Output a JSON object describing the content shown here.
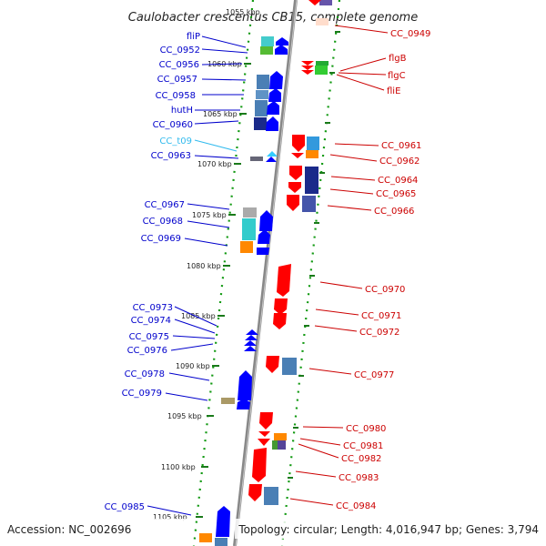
{
  "title": "Caulobacter crescentus CB15, complete genome",
  "partial_top_label": "1055 kbp",
  "footer": {
    "accession": "Accession: NC_002696",
    "summary": "Topology: circular; Length: 4,016,947 bp; Genes: 3,794"
  },
  "colors": {
    "forward_strand": "#0000ff",
    "reverse_strand": "#ff0000",
    "trna": "#33ccff",
    "backbone": "#888888",
    "tick": "#008800"
  },
  "kbp_ticks": [
    "1060 kbp",
    "1065 kbp",
    "1070 kbp",
    "1075 kbp",
    "1080 kbp",
    "1085 kbp",
    "1090 kbp",
    "1095 kbp",
    "1100 kbp",
    "1105 kbp"
  ],
  "left_labels": [
    {
      "text": "fliP",
      "color": "#0000cc"
    },
    {
      "text": "CC_0952",
      "color": "#0000cc"
    },
    {
      "text": "CC_0956",
      "color": "#0000cc"
    },
    {
      "text": "CC_0957",
      "color": "#0000cc"
    },
    {
      "text": "CC_0958",
      "color": "#0000cc"
    },
    {
      "text": "hutH",
      "color": "#0000cc"
    },
    {
      "text": "CC_0960",
      "color": "#0000cc"
    },
    {
      "text": "CC_t09",
      "color": "#33bbee"
    },
    {
      "text": "CC_0963",
      "color": "#0000cc"
    },
    {
      "text": "CC_0967",
      "color": "#0000cc"
    },
    {
      "text": "CC_0968",
      "color": "#0000cc"
    },
    {
      "text": "CC_0969",
      "color": "#0000cc"
    },
    {
      "text": "CC_0973",
      "color": "#0000cc"
    },
    {
      "text": "CC_0974",
      "color": "#0000cc"
    },
    {
      "text": "CC_0975",
      "color": "#0000cc"
    },
    {
      "text": "CC_0976",
      "color": "#0000cc"
    },
    {
      "text": "CC_0978",
      "color": "#0000cc"
    },
    {
      "text": "CC_0979",
      "color": "#0000cc"
    },
    {
      "text": "CC_0985",
      "color": "#0000cc"
    }
  ],
  "right_labels": [
    {
      "text": "CC_0949"
    },
    {
      "text": "flgB"
    },
    {
      "text": "flgC"
    },
    {
      "text": "fliE"
    },
    {
      "text": "CC_0961"
    },
    {
      "text": "CC_0962"
    },
    {
      "text": "CC_0964"
    },
    {
      "text": "CC_0965"
    },
    {
      "text": "CC_0966"
    },
    {
      "text": "CC_0970"
    },
    {
      "text": "CC_0971"
    },
    {
      "text": "CC_0972"
    },
    {
      "text": "CC_0977"
    },
    {
      "text": "CC_0980"
    },
    {
      "text": "CC_0981"
    },
    {
      "text": "CC_0982"
    },
    {
      "text": "CC_0983"
    },
    {
      "text": "CC_0984"
    }
  ]
}
